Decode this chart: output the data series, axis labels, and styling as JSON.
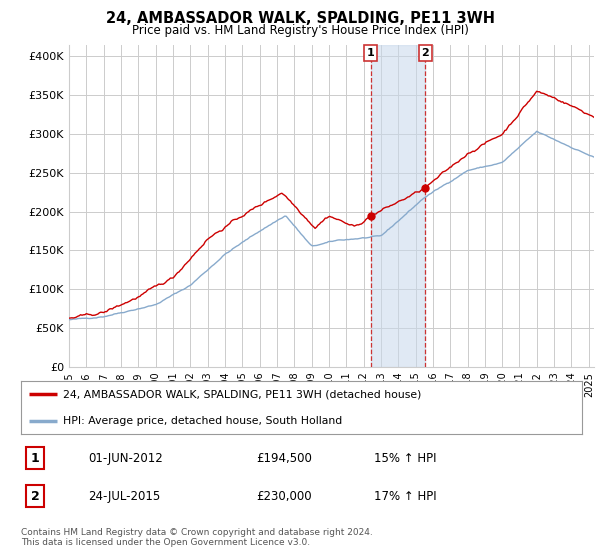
{
  "title": "24, AMBASSADOR WALK, SPALDING, PE11 3WH",
  "subtitle": "Price paid vs. HM Land Registry's House Price Index (HPI)",
  "ylabel_ticks": [
    "£0",
    "£50K",
    "£100K",
    "£150K",
    "£200K",
    "£250K",
    "£300K",
    "£350K",
    "£400K"
  ],
  "ytick_values": [
    0,
    50000,
    100000,
    150000,
    200000,
    250000,
    300000,
    350000,
    400000
  ],
  "ylim": [
    0,
    415000
  ],
  "xlim_start": 1995.0,
  "xlim_end": 2025.3,
  "red_line_color": "#cc0000",
  "blue_line_color": "#88aacc",
  "transaction1_date": 2012.42,
  "transaction1_value": 194500,
  "transaction2_date": 2015.56,
  "transaction2_value": 230000,
  "vline_color": "#cc3333",
  "shade_color": "#c8d8eb",
  "legend_red_label": "24, AMBASSADOR WALK, SPALDING, PE11 3WH (detached house)",
  "legend_blue_label": "HPI: Average price, detached house, South Holland",
  "table_row1": [
    "1",
    "01-JUN-2012",
    "£194,500",
    "15% ↑ HPI"
  ],
  "table_row2": [
    "2",
    "24-JUL-2015",
    "£230,000",
    "17% ↑ HPI"
  ],
  "footer": "Contains HM Land Registry data © Crown copyright and database right 2024.\nThis data is licensed under the Open Government Licence v3.0.",
  "background_color": "#ffffff",
  "grid_color": "#cccccc"
}
